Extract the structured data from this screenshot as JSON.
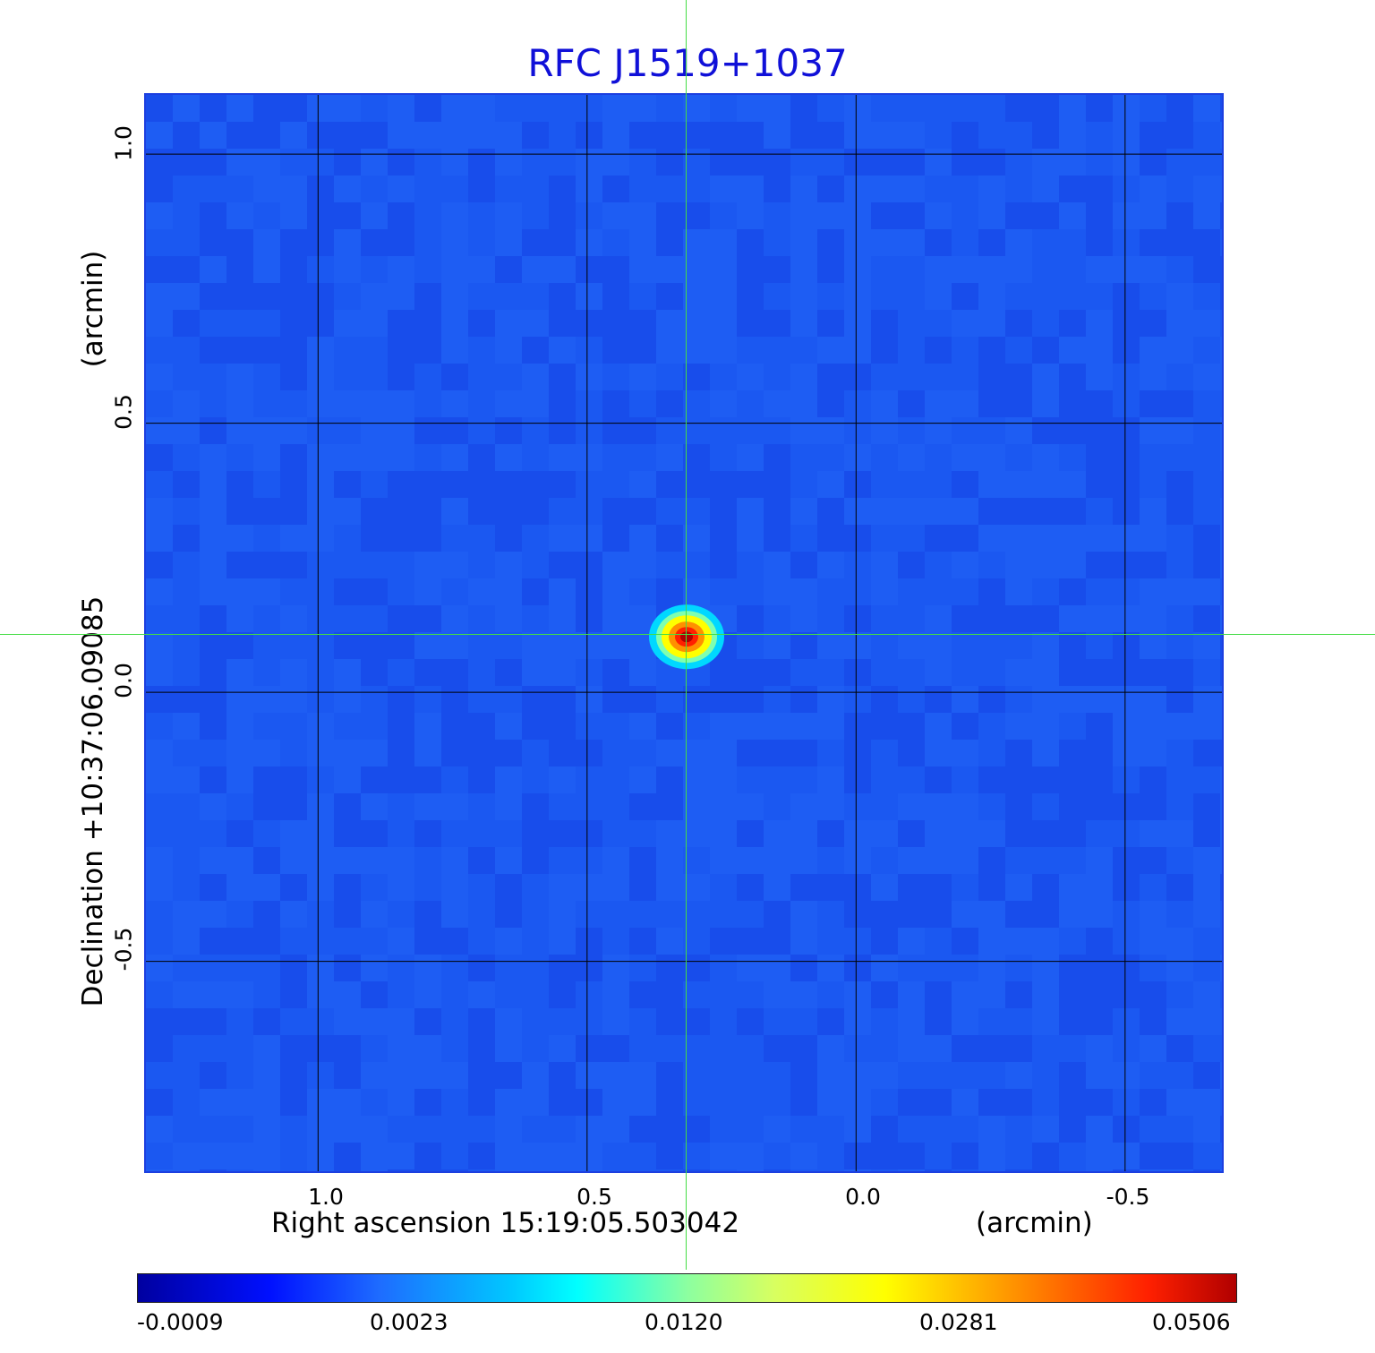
{
  "chart_data": {
    "type": "heatmap",
    "title": "RFC J1519+1037",
    "xlabel": "Right ascension  15:19:05.503042",
    "xunit": "(arcmin)",
    "ylabel": "Declination  +10:37:06.09085",
    "yunit": "(arcmin)",
    "xlim": [
      1.32,
      -0.68
    ],
    "ylim": [
      -0.89,
      1.11
    ],
    "x_ticks": [
      "1.0",
      "0.5",
      "0.0",
      "-0.5"
    ],
    "x_tick_values": [
      1.0,
      0.5,
      0.0,
      -0.5
    ],
    "y_ticks": [
      "1.0",
      "0.5",
      "0.0",
      "-0.5"
    ],
    "y_tick_values": [
      1.0,
      0.5,
      0.0,
      -0.5
    ],
    "grid": true,
    "crosshair": {
      "x": 0.315,
      "y": 0.103
    },
    "source": {
      "x": 0.315,
      "y": 0.103,
      "peak": 0.0506
    },
    "colormap": "jet",
    "colorbar_ticks": [
      "-0.0009",
      "0.0023",
      "0.0120",
      "0.0281",
      "0.0506"
    ],
    "colorbar_values": [
      -0.0009,
      0.0023,
      0.012,
      0.0281,
      0.0506
    ],
    "colors": {
      "background": "#1a52ef",
      "grid": "#000000",
      "crosshair": "#44dd44",
      "title": "#1010d8"
    }
  }
}
